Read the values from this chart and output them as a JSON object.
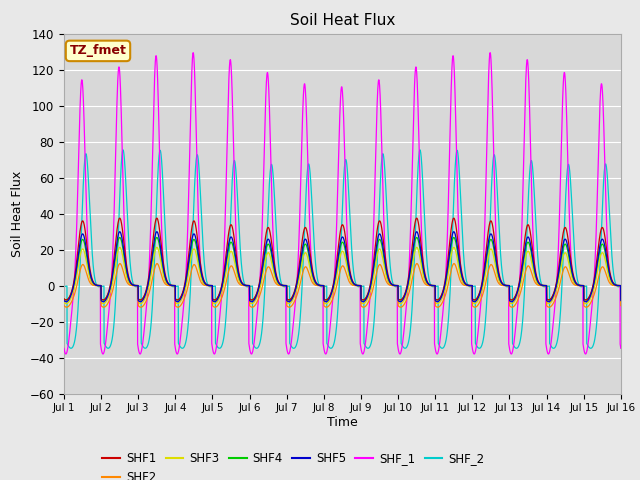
{
  "title": "Soil Heat Flux",
  "xlabel": "Time",
  "ylabel": "Soil Heat Flux",
  "ylim": [
    -60,
    140
  ],
  "xlim": [
    0,
    15
  ],
  "x_tick_labels": [
    "Jul 1",
    "Jul 2",
    "Jul 3",
    "Jul 4",
    "Jul 5",
    "Jul 6",
    "Jul 7",
    "Jul 8",
    "Jul 9",
    "Jul 10",
    "Jul 11",
    "Jul 12",
    "Jul 13",
    "Jul 14",
    "Jul 15",
    "Jul 16"
  ],
  "series_colors": {
    "SHF1": "#cc0000",
    "SHF2": "#ff8800",
    "SHF3": "#dddd00",
    "SHF4": "#00cc00",
    "SHF5": "#0000cc",
    "SHF_1": "#ff00ff",
    "SHF_2": "#00cccc"
  },
  "annotation_text": "TZ_fmet",
  "annotation_bg": "#ffffcc",
  "annotation_border": "#cc8800",
  "annotation_text_color": "#880000",
  "bg_color": "#e8e8e8",
  "plot_bg": "#d8d8d8",
  "grid_color": "#ffffff",
  "n_days": 15,
  "points_per_day": 288
}
